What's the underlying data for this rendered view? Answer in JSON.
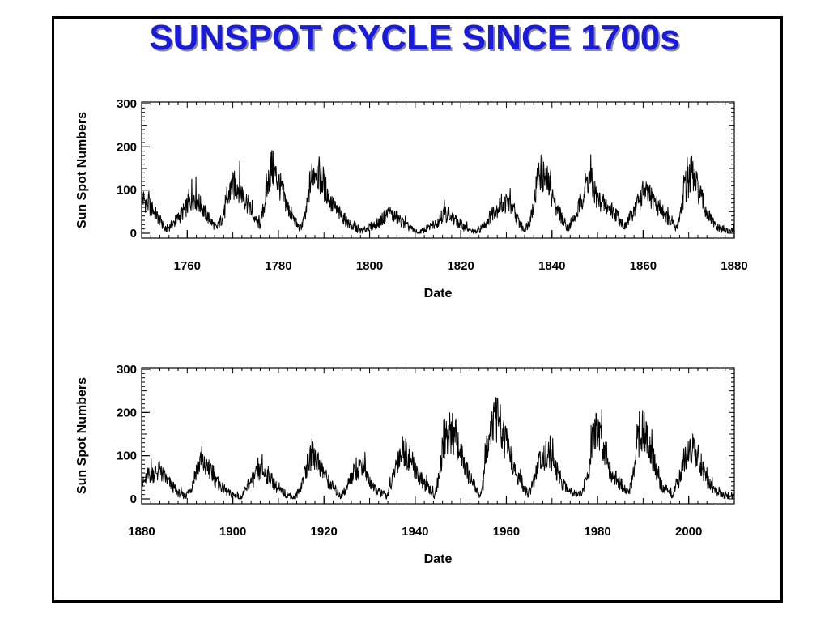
{
  "title": "SUNSPOT CYCLE SINCE 1700s",
  "colors": {
    "title": "#1a1adb",
    "line": "#000000",
    "frame": "#000000"
  },
  "chart_data": [
    {
      "type": "line",
      "title": "",
      "xlabel": "Date",
      "ylabel": "Sun Spot Numbers",
      "xlim": [
        1750,
        1880
      ],
      "ylim": [
        0,
        300
      ],
      "x_ticks": [
        "1760",
        "1780",
        "1800",
        "1820",
        "1840",
        "1860",
        "1880"
      ],
      "y_ticks": [
        "0",
        "100",
        "200",
        "300"
      ],
      "series": [
        {
          "x": [
            1750,
            1752,
            1754,
            1755.2,
            1757,
            1759,
            1761.5,
            1763,
            1765,
            1766.5,
            1768,
            1769.7,
            1771,
            1773,
            1775,
            1776,
            1777,
            1778.4,
            1780,
            1782,
            1784,
            1784.7,
            1786,
            1787,
            1788.1,
            1790,
            1792,
            1794,
            1796,
            1798.3,
            1800,
            1802,
            1804.2,
            1806,
            1808,
            1810.6,
            1813,
            1815,
            1816.4,
            1818,
            1820,
            1822,
            1823.3,
            1825,
            1827,
            1829,
            1830.5,
            1832,
            1833.8,
            1835,
            1836,
            1837.2,
            1839,
            1841,
            1843.5,
            1845,
            1846,
            1848.1,
            1850,
            1852,
            1854,
            1856,
            1858,
            1860.1,
            1862,
            1864,
            1866,
            1867.2,
            1868,
            1869,
            1870.6,
            1872,
            1874,
            1876,
            1878.9,
            1880
          ],
          "values": [
            83,
            60,
            30,
            8,
            22,
            48,
            86,
            62,
            30,
            11,
            42,
            106,
            112,
            74,
            28,
            18,
            72,
            155,
            120,
            60,
            20,
            10,
            40,
            120,
            152,
            110,
            62,
            38,
            16,
            4,
            14,
            24,
            48,
            36,
            18,
            0,
            12,
            28,
            46,
            34,
            20,
            6,
            2,
            16,
            48,
            68,
            72,
            40,
            8,
            24,
            70,
            146,
            118,
            58,
            12,
            28,
            64,
            132,
            78,
            62,
            46,
            14,
            52,
            96,
            78,
            54,
            26,
            10,
            38,
            96,
            139,
            102,
            46,
            14,
            3,
            8
          ]
        }
      ]
    },
    {
      "type": "line",
      "title": "",
      "xlabel": "Date",
      "ylabel": "Sun Spot Numbers",
      "xlim": [
        1880,
        2010
      ],
      "ylim": [
        0,
        300
      ],
      "x_ticks": [
        "1880",
        "1900",
        "1920",
        "1940",
        "1960",
        "1980",
        "2000"
      ],
      "y_ticks": [
        "0",
        "100",
        "200",
        "300"
      ],
      "series": [
        {
          "x": [
            1880,
            1882,
            1883.9,
            1886,
            1888,
            1889.6,
            1891,
            1892,
            1893.1,
            1895,
            1897,
            1899,
            1901.7,
            1903,
            1905,
            1906.2,
            1908,
            1910,
            1913.6,
            1915,
            1916,
            1917.6,
            1919,
            1921,
            1923.6,
            1925,
            1926,
            1928.4,
            1930,
            1931,
            1933.8,
            1935,
            1936,
            1937.4,
            1939,
            1941,
            1944.2,
            1945,
            1946,
            1947.5,
            1949,
            1951,
            1954.3,
            1955,
            1956,
            1958.2,
            1959,
            1961,
            1962,
            1964.8,
            1966,
            1967,
            1968.9,
            1970,
            1972,
            1974,
            1976.5,
            1978,
            1979,
            1979.9,
            1981,
            1983,
            1986.8,
            1988,
            1989,
            1989.9,
            1991,
            1993,
            1994,
            1996.4,
            1998,
            1999,
            2000.3,
            2002,
            2004,
            2006,
            2008.9,
            2010
          ],
          "values": [
            32,
            58,
            64,
            38,
            14,
            6,
            28,
            70,
            85,
            62,
            32,
            14,
            3,
            22,
            54,
            64,
            52,
            20,
            1,
            30,
            70,
            104,
            80,
            40,
            6,
            24,
            52,
            78,
            40,
            22,
            6,
            42,
            88,
            115,
            90,
            48,
            8,
            40,
            112,
            152,
            140,
            70,
            4,
            40,
            150,
            190,
            150,
            100,
            56,
            10,
            38,
            78,
            106,
            90,
            40,
            18,
            12,
            60,
            140,
            155,
            130,
            60,
            12,
            60,
            140,
            158,
            140,
            60,
            30,
            8,
            45,
            92,
            121,
            102,
            40,
            16,
            2,
            5
          ]
        }
      ]
    }
  ]
}
